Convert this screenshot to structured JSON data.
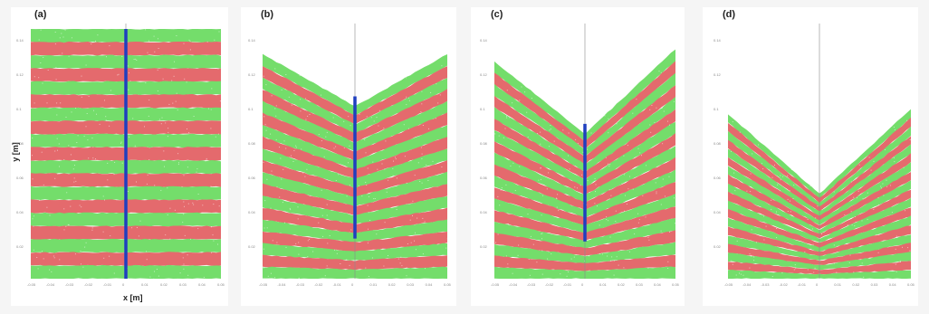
{
  "panels": [
    {
      "label": "(a)",
      "shape": "flat",
      "surface": [
        0,
        0,
        0
      ],
      "tracer_bottom": 1.0
    },
    {
      "label": "(b)",
      "shape": "vee",
      "surface": [
        0.1,
        0.27,
        0.1
      ],
      "tracer_bottom": 0.78
    },
    {
      "label": "(c)",
      "shape": "vee",
      "surface": [
        0.13,
        0.38,
        0.08
      ],
      "tracer_bottom": 0.76
    },
    {
      "label": "(d)",
      "shape": "vee",
      "surface": [
        0.34,
        0.62,
        0.32
      ],
      "tracer_bottom": 0.0
    }
  ],
  "axes": {
    "y_label": "y [m]",
    "x_label": "x [m]",
    "y_ticks": [
      "0.14",
      "0.12",
      "0.1",
      "0.08",
      "0.06",
      "0.04",
      "0.02"
    ],
    "x_ticks": [
      "-0.05",
      "-0.04",
      "-0.03",
      "-0.02",
      "-0.01",
      "0",
      "0.01",
      "0.02",
      "0.03",
      "0.04",
      "0.05"
    ]
  },
  "colors": {
    "green": "#74dd6b",
    "red": "#e46a6d",
    "tracer": "#1f3fbf",
    "centerline": "#8a8a8a",
    "background": "#ffffff"
  },
  "layers": 19
}
